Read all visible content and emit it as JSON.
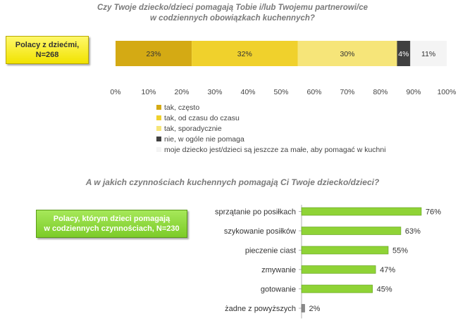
{
  "chart_data": [
    {
      "type": "bar",
      "orientation": "horizontal-stacked",
      "title": "Czy Twoje dziecko/dzieci pomagają Tobie i/lub Twojemu partnerowi/ce\nw codziennych obowiązkach kuchennych?",
      "category_label": "Polacy z dziećmi,\nN=268",
      "xlim": [
        0,
        100
      ],
      "x_ticks": [
        "0%",
        "10%",
        "20%",
        "30%",
        "40%",
        "50%",
        "60%",
        "70%",
        "80%",
        "90%",
        "100%"
      ],
      "series": [
        {
          "name": "tak, często",
          "value": 23,
          "label": "23%",
          "color": "#d4aa14"
        },
        {
          "name": "tak, od czasu do czasu",
          "value": 32,
          "label": "32%",
          "color": "#f0d12c"
        },
        {
          "name": "tak, sporadycznie",
          "value": 30,
          "label": "30%",
          "color": "#f6e579"
        },
        {
          "name": "nie, w ogóle nie pomaga",
          "value": 4,
          "label": "4%",
          "color": "#404040"
        },
        {
          "name": "moje dziecko jest/dzieci są jeszcze za małe, aby pomagać w kuchni",
          "value": 11,
          "label": "11%",
          "color": "#f4f4f4"
        }
      ],
      "legend_placement": "bottom-left"
    },
    {
      "type": "bar",
      "orientation": "horizontal",
      "title": "A w jakich czynnościach kuchennych pomagają Ci Twoje dziecko/dzieci?",
      "category_label": "Polacy, którym dzieci pomagają\nw codziennych czynnościach, N=230",
      "categories": [
        "sprzątanie po posiłkach",
        "szykowanie posiłków",
        "pieczenie ciast",
        "zmywanie",
        "gotowanie",
        "żadne z powyższych"
      ],
      "values": [
        76,
        63,
        55,
        47,
        45,
        2
      ],
      "labels": [
        "76%",
        "63%",
        "55%",
        "47%",
        "45%",
        "2%"
      ],
      "colors": {
        "bar": "#8fd336",
        "bar_other": "#8a8a8a"
      },
      "xlim": [
        0,
        100
      ]
    }
  ]
}
